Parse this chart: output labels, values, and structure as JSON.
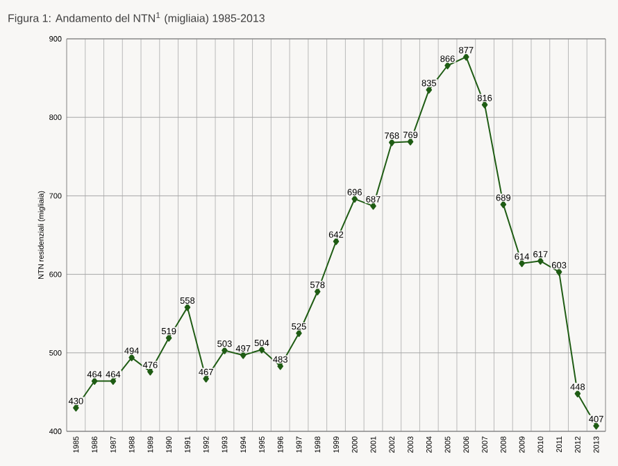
{
  "chart_data": {
    "type": "line",
    "title": "Figura 1: Andamento del NTN$^{1}$ (migliaia) 1985-2013",
    "ylabel": "NTN residenziali (migliaia)",
    "categories": [
      "1985",
      "1986",
      "1987",
      "1988",
      "1989",
      "1990",
      "1991",
      "1992",
      "1993",
      "1994",
      "1995",
      "1996",
      "1997",
      "1998",
      "1999",
      "2000",
      "2001",
      "2002",
      "2003",
      "2004",
      "2005",
      "2006",
      "2007",
      "2008",
      "2009",
      "2010",
      "2011",
      "2012",
      "2013"
    ],
    "values": [
      430,
      464,
      464,
      494,
      476,
      519,
      558,
      467,
      503,
      497,
      504,
      483,
      525,
      578,
      642,
      696,
      687,
      768,
      769,
      835,
      866,
      877,
      816,
      689,
      614,
      617,
      603,
      448,
      407
    ],
    "color": "#1f5c14",
    "marker": "diamond",
    "line_style": "solid",
    "data_labels": true,
    "grid": true,
    "ylim": [
      400,
      900
    ],
    "yticks": [
      400,
      500,
      600,
      700,
      800,
      900
    ]
  }
}
